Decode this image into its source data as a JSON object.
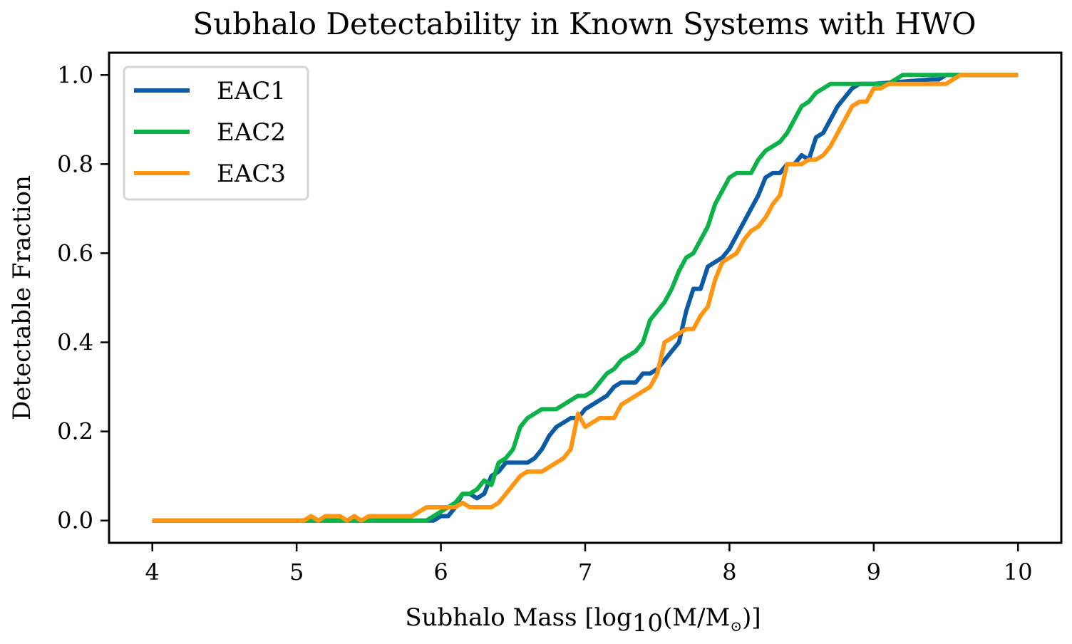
{
  "chart_data": {
    "type": "line",
    "title": "Subhalo Detectability in Known Systems with HWO",
    "xlabel": "Subhalo Mass [log10(M/M⊙)]",
    "xlabel_parts": {
      "prefix": "Subhalo Mass [log",
      "subscript": "10",
      "middle": "(M/M",
      "subscript2": "⊙",
      "suffix": ")]"
    },
    "ylabel": "Detectable Fraction",
    "xlim": [
      3.7,
      10.3
    ],
    "ylim": [
      -0.05,
      1.05
    ],
    "xticks": [
      4,
      5,
      6,
      7,
      8,
      9,
      10
    ],
    "xtick_labels": [
      "4",
      "5",
      "6",
      "7",
      "8",
      "9",
      "10"
    ],
    "yticks": [
      0.0,
      0.2,
      0.4,
      0.6,
      0.8,
      1.0
    ],
    "ytick_labels": [
      "0.0",
      "0.2",
      "0.4",
      "0.6",
      "0.8",
      "1.0"
    ],
    "grid": false,
    "legend_position": "top-left",
    "series": [
      {
        "name": "EAC1",
        "color": "#0b5aa6",
        "points": [
          [
            4.0,
            0.0
          ],
          [
            5.7,
            0.0
          ],
          [
            5.8,
            0.0
          ],
          [
            5.95,
            0.0
          ],
          [
            6.0,
            0.01
          ],
          [
            6.05,
            0.01
          ],
          [
            6.1,
            0.03
          ],
          [
            6.15,
            0.06
          ],
          [
            6.2,
            0.06
          ],
          [
            6.25,
            0.05
          ],
          [
            6.3,
            0.06
          ],
          [
            6.35,
            0.1
          ],
          [
            6.4,
            0.11
          ],
          [
            6.45,
            0.13
          ],
          [
            6.5,
            0.13
          ],
          [
            6.6,
            0.13
          ],
          [
            6.65,
            0.14
          ],
          [
            6.7,
            0.16
          ],
          [
            6.75,
            0.19
          ],
          [
            6.8,
            0.21
          ],
          [
            6.85,
            0.22
          ],
          [
            6.9,
            0.23
          ],
          [
            6.95,
            0.23
          ],
          [
            7.0,
            0.25
          ],
          [
            7.05,
            0.26
          ],
          [
            7.1,
            0.27
          ],
          [
            7.15,
            0.28
          ],
          [
            7.2,
            0.3
          ],
          [
            7.25,
            0.31
          ],
          [
            7.3,
            0.31
          ],
          [
            7.35,
            0.31
          ],
          [
            7.4,
            0.33
          ],
          [
            7.45,
            0.33
          ],
          [
            7.5,
            0.34
          ],
          [
            7.55,
            0.36
          ],
          [
            7.6,
            0.38
          ],
          [
            7.65,
            0.4
          ],
          [
            7.7,
            0.47
          ],
          [
            7.75,
            0.52
          ],
          [
            7.8,
            0.52
          ],
          [
            7.85,
            0.57
          ],
          [
            7.9,
            0.58
          ],
          [
            7.95,
            0.59
          ],
          [
            8.0,
            0.61
          ],
          [
            8.05,
            0.64
          ],
          [
            8.1,
            0.67
          ],
          [
            8.15,
            0.7
          ],
          [
            8.2,
            0.73
          ],
          [
            8.25,
            0.77
          ],
          [
            8.3,
            0.78
          ],
          [
            8.35,
            0.78
          ],
          [
            8.4,
            0.8
          ],
          [
            8.45,
            0.8
          ],
          [
            8.5,
            0.82
          ],
          [
            8.55,
            0.81
          ],
          [
            8.6,
            0.86
          ],
          [
            8.65,
            0.87
          ],
          [
            8.7,
            0.9
          ],
          [
            8.75,
            0.93
          ],
          [
            8.8,
            0.95
          ],
          [
            8.85,
            0.97
          ],
          [
            8.9,
            0.98
          ],
          [
            8.95,
            0.98
          ],
          [
            9.0,
            0.98
          ],
          [
            9.4,
            0.99
          ],
          [
            9.45,
            0.99
          ],
          [
            9.5,
            1.0
          ],
          [
            10.0,
            1.0
          ]
        ]
      },
      {
        "name": "EAC2",
        "color": "#0ab248",
        "points": [
          [
            4.0,
            0.0
          ],
          [
            5.05,
            0.0
          ],
          [
            5.1,
            0.0
          ],
          [
            5.9,
            0.0
          ],
          [
            5.95,
            0.01
          ],
          [
            6.0,
            0.02
          ],
          [
            6.05,
            0.03
          ],
          [
            6.1,
            0.04
          ],
          [
            6.15,
            0.06
          ],
          [
            6.2,
            0.06
          ],
          [
            6.25,
            0.07
          ],
          [
            6.3,
            0.09
          ],
          [
            6.35,
            0.08
          ],
          [
            6.4,
            0.13
          ],
          [
            6.45,
            0.14
          ],
          [
            6.5,
            0.16
          ],
          [
            6.55,
            0.21
          ],
          [
            6.6,
            0.23
          ],
          [
            6.65,
            0.24
          ],
          [
            6.7,
            0.25
          ],
          [
            6.75,
            0.25
          ],
          [
            6.8,
            0.25
          ],
          [
            6.85,
            0.26
          ],
          [
            6.9,
            0.27
          ],
          [
            6.95,
            0.28
          ],
          [
            7.0,
            0.28
          ],
          [
            7.05,
            0.29
          ],
          [
            7.1,
            0.31
          ],
          [
            7.15,
            0.33
          ],
          [
            7.2,
            0.34
          ],
          [
            7.25,
            0.36
          ],
          [
            7.3,
            0.37
          ],
          [
            7.35,
            0.38
          ],
          [
            7.4,
            0.4
          ],
          [
            7.45,
            0.45
          ],
          [
            7.5,
            0.47
          ],
          [
            7.55,
            0.49
          ],
          [
            7.6,
            0.52
          ],
          [
            7.65,
            0.56
          ],
          [
            7.7,
            0.59
          ],
          [
            7.75,
            0.6
          ],
          [
            7.8,
            0.63
          ],
          [
            7.85,
            0.66
          ],
          [
            7.9,
            0.71
          ],
          [
            7.95,
            0.74
          ],
          [
            8.0,
            0.77
          ],
          [
            8.05,
            0.78
          ],
          [
            8.1,
            0.78
          ],
          [
            8.15,
            0.78
          ],
          [
            8.2,
            0.81
          ],
          [
            8.25,
            0.83
          ],
          [
            8.3,
            0.84
          ],
          [
            8.35,
            0.85
          ],
          [
            8.4,
            0.87
          ],
          [
            8.45,
            0.9
          ],
          [
            8.5,
            0.93
          ],
          [
            8.55,
            0.94
          ],
          [
            8.6,
            0.96
          ],
          [
            8.65,
            0.97
          ],
          [
            8.7,
            0.98
          ],
          [
            8.75,
            0.98
          ],
          [
            9.1,
            0.98
          ],
          [
            9.15,
            0.99
          ],
          [
            9.2,
            1.0
          ],
          [
            10.0,
            1.0
          ]
        ]
      },
      {
        "name": "EAC3",
        "color": "#ff9510",
        "points": [
          [
            4.0,
            0.0
          ],
          [
            5.0,
            0.0
          ],
          [
            5.05,
            0.0
          ],
          [
            5.1,
            0.01
          ],
          [
            5.15,
            0.0
          ],
          [
            5.2,
            0.01
          ],
          [
            5.25,
            0.01
          ],
          [
            5.3,
            0.01
          ],
          [
            5.35,
            0.0
          ],
          [
            5.4,
            0.01
          ],
          [
            5.45,
            0.0
          ],
          [
            5.5,
            0.01
          ],
          [
            5.8,
            0.01
          ],
          [
            5.85,
            0.02
          ],
          [
            5.9,
            0.03
          ],
          [
            6.0,
            0.03
          ],
          [
            6.1,
            0.03
          ],
          [
            6.15,
            0.04
          ],
          [
            6.2,
            0.03
          ],
          [
            6.35,
            0.03
          ],
          [
            6.4,
            0.04
          ],
          [
            6.45,
            0.06
          ],
          [
            6.5,
            0.08
          ],
          [
            6.55,
            0.1
          ],
          [
            6.6,
            0.11
          ],
          [
            6.65,
            0.11
          ],
          [
            6.7,
            0.11
          ],
          [
            6.75,
            0.12
          ],
          [
            6.8,
            0.13
          ],
          [
            6.85,
            0.14
          ],
          [
            6.9,
            0.16
          ],
          [
            6.95,
            0.24
          ],
          [
            7.0,
            0.21
          ],
          [
            7.05,
            0.22
          ],
          [
            7.1,
            0.23
          ],
          [
            7.2,
            0.23
          ],
          [
            7.25,
            0.26
          ],
          [
            7.3,
            0.27
          ],
          [
            7.35,
            0.28
          ],
          [
            7.4,
            0.29
          ],
          [
            7.45,
            0.3
          ],
          [
            7.5,
            0.33
          ],
          [
            7.55,
            0.4
          ],
          [
            7.6,
            0.41
          ],
          [
            7.65,
            0.42
          ],
          [
            7.7,
            0.43
          ],
          [
            7.75,
            0.43
          ],
          [
            7.8,
            0.46
          ],
          [
            7.85,
            0.48
          ],
          [
            7.9,
            0.54
          ],
          [
            7.95,
            0.58
          ],
          [
            8.0,
            0.59
          ],
          [
            8.05,
            0.6
          ],
          [
            8.1,
            0.63
          ],
          [
            8.15,
            0.65
          ],
          [
            8.2,
            0.66
          ],
          [
            8.25,
            0.68
          ],
          [
            8.3,
            0.71
          ],
          [
            8.35,
            0.73
          ],
          [
            8.4,
            0.8
          ],
          [
            8.45,
            0.8
          ],
          [
            8.5,
            0.8
          ],
          [
            8.55,
            0.81
          ],
          [
            8.6,
            0.81
          ],
          [
            8.65,
            0.82
          ],
          [
            8.7,
            0.84
          ],
          [
            8.75,
            0.87
          ],
          [
            8.8,
            0.9
          ],
          [
            8.85,
            0.93
          ],
          [
            8.9,
            0.94
          ],
          [
            8.95,
            0.94
          ],
          [
            9.0,
            0.97
          ],
          [
            9.05,
            0.97
          ],
          [
            9.1,
            0.98
          ],
          [
            9.15,
            0.98
          ],
          [
            9.5,
            0.98
          ],
          [
            9.55,
            0.99
          ],
          [
            9.6,
            1.0
          ],
          [
            10.0,
            1.0
          ]
        ]
      }
    ]
  }
}
